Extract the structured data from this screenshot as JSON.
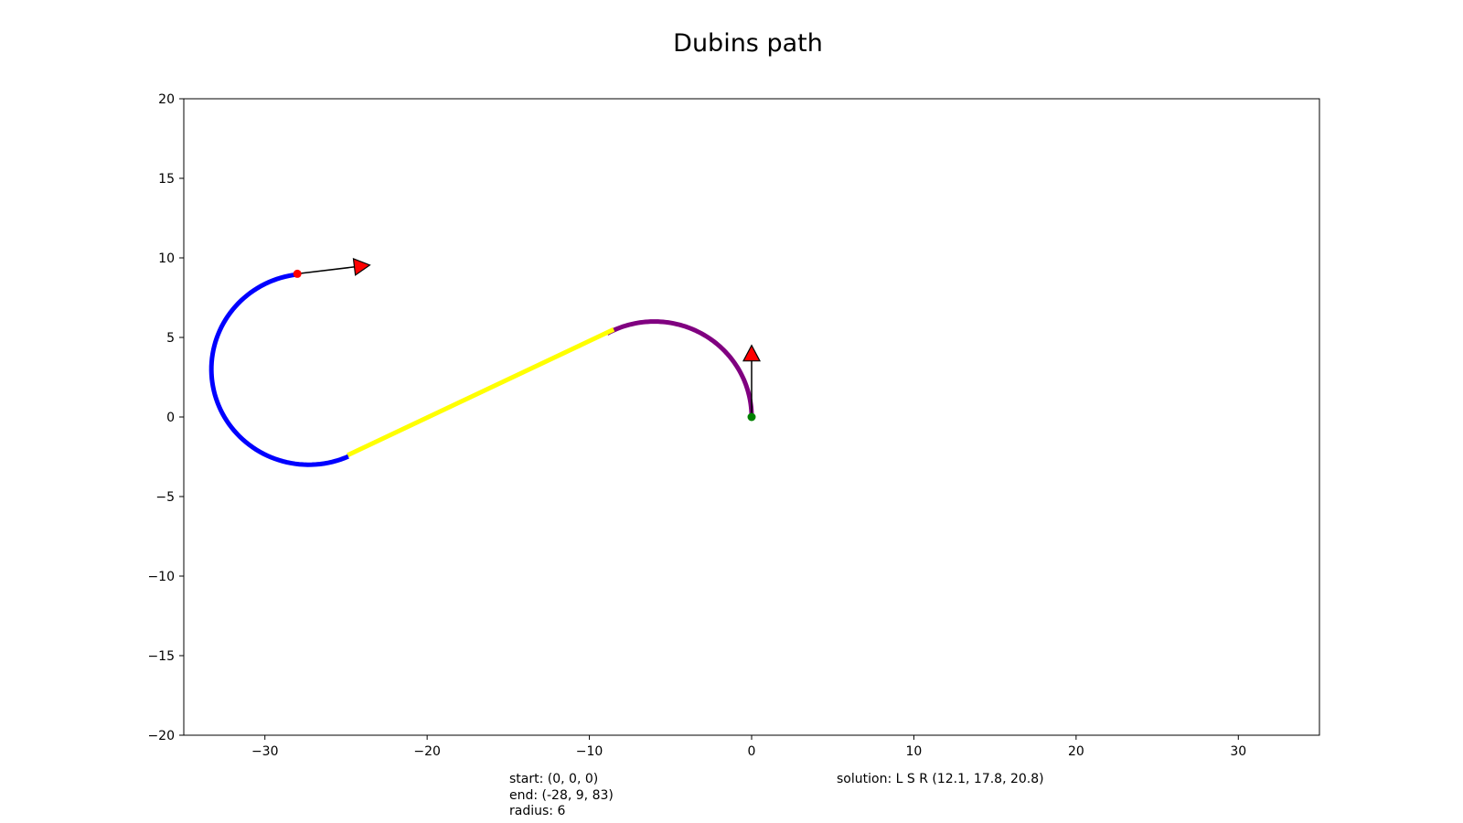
{
  "chart_data": {
    "type": "line",
    "title": "Dubins path",
    "xlabel": "",
    "ylabel": "",
    "xlim": [
      -35,
      35
    ],
    "ylim": [
      -20,
      20
    ],
    "xticks": [
      -30,
      -20,
      -10,
      0,
      10,
      20,
      30
    ],
    "yticks": [
      -20,
      -15,
      -10,
      -5,
      0,
      5,
      10,
      15,
      20
    ],
    "xtick_labels": [
      "−30",
      "−20",
      "−10",
      "0",
      "10",
      "20",
      "30"
    ],
    "ytick_labels": [
      "−20",
      "−15",
      "−10",
      "−5",
      "0",
      "5",
      "10",
      "15",
      "20"
    ],
    "grid": false,
    "start": {
      "x": 0,
      "y": 0,
      "heading_deg": 90,
      "color": "#008000"
    },
    "end": {
      "x": -28,
      "y": 9,
      "heading_deg": 7,
      "color": "#ff0000"
    },
    "series": [
      {
        "segment": "arc",
        "color": "#800080",
        "center": [
          -6,
          0
        ],
        "radius": 6,
        "from_deg": 0,
        "to_deg": 119
      },
      {
        "segment": "line",
        "color": "#ffff00",
        "x": [
          -8.5,
          -24.9
        ],
        "y": [
          5.5,
          -2.4
        ]
      },
      {
        "segment": "arc",
        "color": "#0000ff",
        "center": [
          -27.3,
          3
        ],
        "radius": 6,
        "from_deg": -66,
        "to_deg": -263
      }
    ],
    "arrow_color": "#ff0000"
  },
  "info": {
    "line1": "start: (0, 0, 0)",
    "line2": "end: (-28, 9, 83)",
    "line3": "radius: 6",
    "solution": "solution: L S R (12.1, 17.8, 20.8)"
  }
}
